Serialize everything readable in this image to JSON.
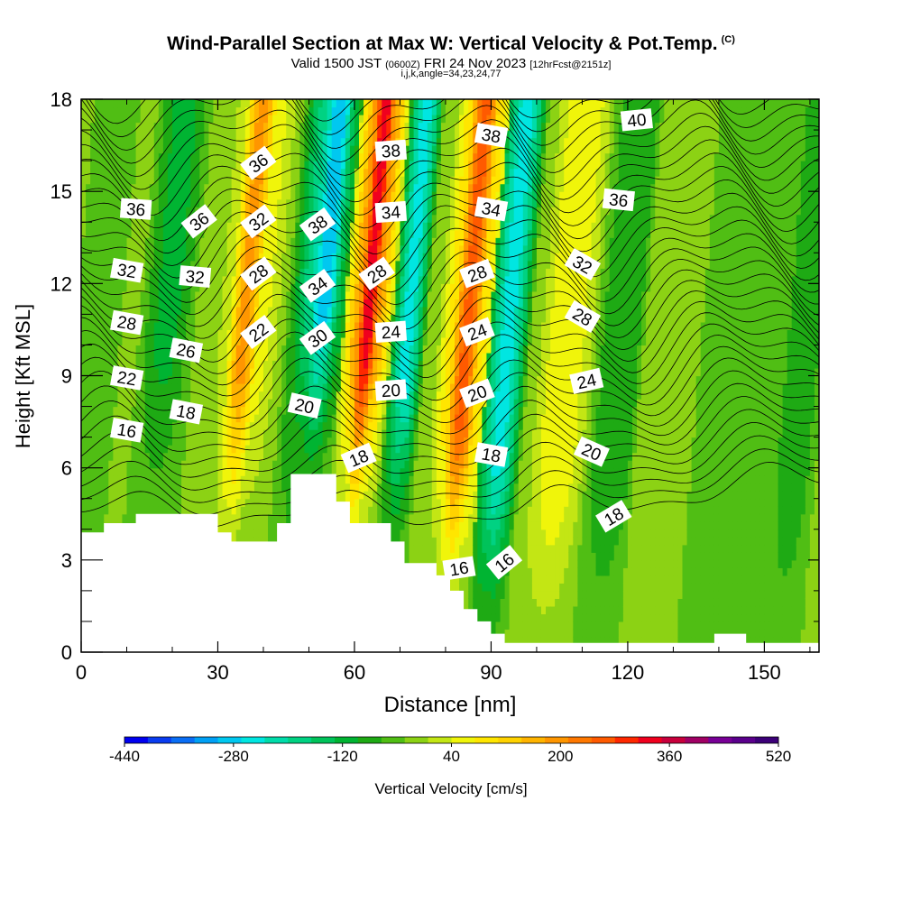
{
  "header": {
    "title": "Wind-Parallel Section at Max W: Vertical Velocity & Pot.Temp.",
    "copyright": "(C)",
    "valid_label": "Valid 1500 JST",
    "valid_z": "(0600Z)",
    "valid_date": "FRI 24 Nov 2023",
    "forecast": "[12hrFcst@2151z]",
    "indices": "i,j,k,angle=34,23,24,77"
  },
  "chart_data": {
    "type": "heatmap",
    "xlabel": "Distance [nm]",
    "ylabel": "Height [Kft MSL]",
    "xlim": [
      0,
      162
    ],
    "ylim": [
      0,
      18
    ],
    "x_ticks": [
      0,
      30,
      60,
      90,
      120,
      150
    ],
    "y_ticks": [
      0,
      3,
      6,
      9,
      12,
      15,
      18
    ],
    "colorbar": {
      "label": "Vertical Velocity [cm/s]",
      "min": -440,
      "max": 520,
      "step": 40,
      "tick_labels": [
        -440,
        -280,
        -120,
        40,
        200,
        360,
        520
      ],
      "colors": [
        "#0000f0",
        "#0a3cf0",
        "#0a6ef5",
        "#00a0f5",
        "#00c8f0",
        "#00e6e1",
        "#00dcaa",
        "#00d282",
        "#00c35a",
        "#00b432",
        "#1eaa14",
        "#50be14",
        "#8cd214",
        "#c3e614",
        "#f0f50a",
        "#ffe600",
        "#ffd200",
        "#ffb400",
        "#ff9600",
        "#ff7800",
        "#ff5a00",
        "#ff2800",
        "#f0001e",
        "#c8003c",
        "#a00064",
        "#780096",
        "#5a008c",
        "#3c0078"
      ]
    },
    "terrain": [
      [
        0,
        3.9
      ],
      [
        5,
        3.9
      ],
      [
        5,
        4.2
      ],
      [
        12,
        4.2
      ],
      [
        12,
        4.5
      ],
      [
        30,
        4.5
      ],
      [
        30,
        3.9
      ],
      [
        33,
        3.9
      ],
      [
        33,
        3.6
      ],
      [
        43,
        3.6
      ],
      [
        43,
        4.2
      ],
      [
        46,
        4.2
      ],
      [
        46,
        5.8
      ],
      [
        56,
        5.8
      ],
      [
        56,
        4.9
      ],
      [
        59,
        4.9
      ],
      [
        59,
        4.2
      ],
      [
        68,
        4.2
      ],
      [
        68,
        3.6
      ],
      [
        71,
        3.6
      ],
      [
        71,
        2.9
      ],
      [
        78,
        2.9
      ],
      [
        78,
        2.5
      ],
      [
        81,
        2.5
      ],
      [
        81,
        2.0
      ],
      [
        84,
        2.0
      ],
      [
        84,
        1.4
      ],
      [
        87,
        1.4
      ],
      [
        87,
        1.0
      ],
      [
        90,
        1.0
      ],
      [
        90,
        0.6
      ],
      [
        93,
        0.6
      ],
      [
        93,
        0.3
      ],
      [
        139,
        0.3
      ],
      [
        139,
        0.6
      ],
      [
        146,
        0.6
      ],
      [
        146,
        0.3
      ],
      [
        162,
        0.3
      ]
    ],
    "vertical_velocity_bands": [
      {
        "x_center": 3,
        "half_width": 5,
        "value": 0
      },
      {
        "x_center": 18,
        "half_width": 6,
        "value": -60
      },
      {
        "x_center": 35,
        "half_width": 4,
        "value": 300
      },
      {
        "x_center": 36,
        "half_width": 8,
        "value": 160
      },
      {
        "x_center": 52,
        "half_width": 4,
        "value": -280
      },
      {
        "x_center": 51,
        "half_width": 7,
        "value": -180
      },
      {
        "x_center": 62,
        "half_width": 3,
        "value": 480
      },
      {
        "x_center": 62,
        "half_width": 6,
        "value": 340
      },
      {
        "x_center": 71,
        "half_width": 4,
        "value": -220
      },
      {
        "x_center": 84,
        "half_width": 4,
        "value": 380
      },
      {
        "x_center": 84,
        "half_width": 7,
        "value": 240
      },
      {
        "x_center": 93,
        "half_width": 5,
        "value": -220
      },
      {
        "x_center": 106,
        "half_width": 7,
        "value": 160
      },
      {
        "x_center": 118,
        "half_width": 6,
        "value": -40
      },
      {
        "x_center": 128,
        "half_width": 8,
        "value": 80
      },
      {
        "x_center": 145,
        "half_width": 10,
        "value": 0
      },
      {
        "x_center": 158,
        "half_width": 5,
        "value": -40
      }
    ],
    "theta_contour_labels": [
      {
        "text": "36",
        "x": 12,
        "y": 14.4
      },
      {
        "text": "32",
        "x": 10,
        "y": 12.4
      },
      {
        "text": "28",
        "x": 10,
        "y": 10.7
      },
      {
        "text": "22",
        "x": 10,
        "y": 8.9
      },
      {
        "text": "16",
        "x": 10,
        "y": 7.2
      },
      {
        "text": "36",
        "x": 26,
        "y": 14.0
      },
      {
        "text": "32",
        "x": 25,
        "y": 12.2
      },
      {
        "text": "26",
        "x": 23,
        "y": 9.8
      },
      {
        "text": "18",
        "x": 23,
        "y": 7.8
      },
      {
        "text": "36",
        "x": 39,
        "y": 15.9
      },
      {
        "text": "32",
        "x": 39,
        "y": 14.0
      },
      {
        "text": "28",
        "x": 39,
        "y": 12.3
      },
      {
        "text": "22",
        "x": 39,
        "y": 10.4
      },
      {
        "text": "20",
        "x": 49,
        "y": 8.0
      },
      {
        "text": "38",
        "x": 52,
        "y": 13.9
      },
      {
        "text": "34",
        "x": 52,
        "y": 11.9
      },
      {
        "text": "30",
        "x": 52,
        "y": 10.2
      },
      {
        "text": "38",
        "x": 68,
        "y": 16.3
      },
      {
        "text": "34",
        "x": 68,
        "y": 14.3
      },
      {
        "text": "28",
        "x": 65,
        "y": 12.3
      },
      {
        "text": "24",
        "x": 68,
        "y": 10.4
      },
      {
        "text": "20",
        "x": 68,
        "y": 8.5
      },
      {
        "text": "18",
        "x": 61,
        "y": 6.3
      },
      {
        "text": "38",
        "x": 90,
        "y": 16.8
      },
      {
        "text": "34",
        "x": 90,
        "y": 14.4
      },
      {
        "text": "28",
        "x": 87,
        "y": 12.3
      },
      {
        "text": "24",
        "x": 87,
        "y": 10.4
      },
      {
        "text": "20",
        "x": 87,
        "y": 8.4
      },
      {
        "text": "18",
        "x": 90,
        "y": 6.4
      },
      {
        "text": "16",
        "x": 83,
        "y": 2.7
      },
      {
        "text": "16",
        "x": 93,
        "y": 2.9
      },
      {
        "text": "40",
        "x": 122,
        "y": 17.3
      },
      {
        "text": "36",
        "x": 118,
        "y": 14.7
      },
      {
        "text": "32",
        "x": 110,
        "y": 12.6
      },
      {
        "text": "28",
        "x": 110,
        "y": 10.9
      },
      {
        "text": "24",
        "x": 111,
        "y": 8.8
      },
      {
        "text": "20",
        "x": 112,
        "y": 6.5
      },
      {
        "text": "18",
        "x": 117,
        "y": 4.4
      }
    ],
    "grid": false
  }
}
